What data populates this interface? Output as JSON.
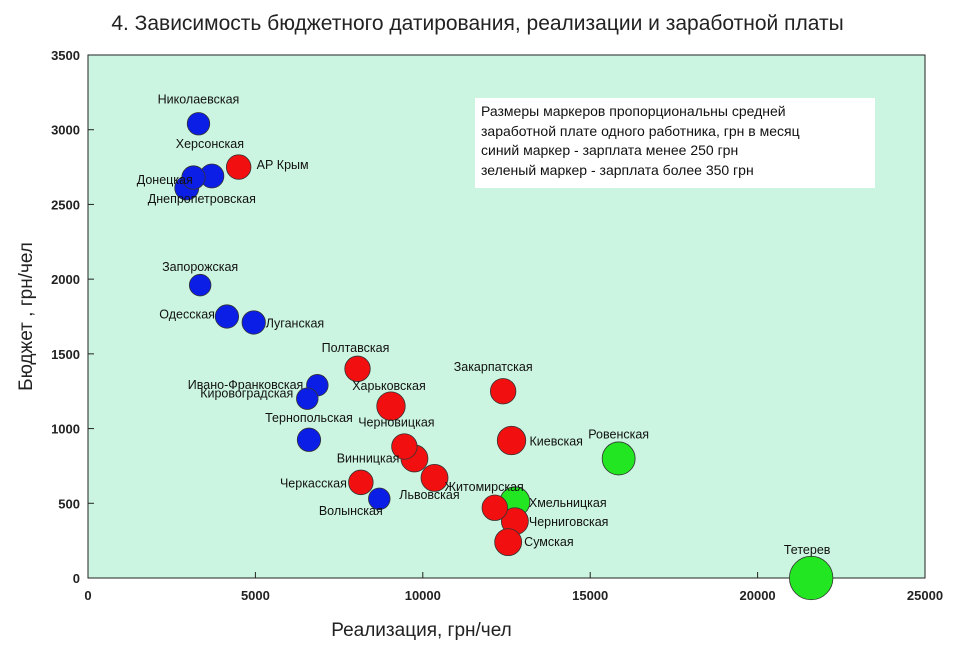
{
  "chart_data": {
    "type": "scatter",
    "title": "4. Зависимость бюджетного датирования, реализации и заработной платы",
    "xlabel": "Реализация, грн/чел",
    "ylabel": "Бюджет , грн/чел",
    "xlim": [
      0,
      25000
    ],
    "ylim": [
      0,
      3500
    ],
    "xticks": [
      "0",
      "5000",
      "10000",
      "15000",
      "20000",
      "25000"
    ],
    "yticks": [
      "0",
      "500",
      "1000",
      "1500",
      "2000",
      "2500",
      "3000",
      "3500"
    ],
    "plot_background": "#ccf5e1",
    "colors": {
      "blue": "#0a1ee6",
      "red": "#f20f0f",
      "green": "#22e622"
    },
    "note": [
      "Размеры маркеров пропорциональны средней",
      "заработной плате одного работника, грн в месяц",
      "синий маркер - зарплата менее 250 грн",
      "зеленый маркер - зарплата более 350 грн"
    ],
    "points": [
      {
        "label": "Николаевская",
        "x": 3300,
        "y": 3040,
        "size": 0.75,
        "color": "blue"
      },
      {
        "label": "Херсонская",
        "x": 3700,
        "y": 2690,
        "size": 0.8,
        "color": "blue"
      },
      {
        "label": "",
        "x": 3150,
        "y": 2680,
        "size": 0.78,
        "color": "blue"
      },
      {
        "label": "Донецкая",
        "x": 2950,
        "y": 2610,
        "size": 0.8,
        "color": "blue"
      },
      {
        "label": "Днепропетровская",
        "x": 0,
        "y": 0,
        "size": 0,
        "color": "none"
      },
      {
        "label": "АР Крым",
        "x": 4500,
        "y": 2750,
        "size": 0.82,
        "color": "red"
      },
      {
        "label": "Запорожская",
        "x": 3350,
        "y": 1960,
        "size": 0.72,
        "color": "blue"
      },
      {
        "label": "Одесская",
        "x": 4150,
        "y": 1750,
        "size": 0.78,
        "color": "blue"
      },
      {
        "label": "Луганская",
        "x": 4950,
        "y": 1710,
        "size": 0.78,
        "color": "blue"
      },
      {
        "label": "Полтавская",
        "x": 8050,
        "y": 1400,
        "size": 0.85,
        "color": "red"
      },
      {
        "label": "Ивано-Франковская",
        "x": 6850,
        "y": 1290,
        "size": 0.72,
        "color": "blue"
      },
      {
        "label": "Кировоградская",
        "x": 6550,
        "y": 1200,
        "size": 0.72,
        "color": "blue"
      },
      {
        "label": "Харьковская",
        "x": 9050,
        "y": 1150,
        "size": 0.95,
        "color": "red"
      },
      {
        "label": "Тернопольская",
        "x": 6600,
        "y": 925,
        "size": 0.78,
        "color": "blue"
      },
      {
        "label": "Черновицкая",
        "x": 9450,
        "y": 880,
        "size": 0.85,
        "color": "red"
      },
      {
        "label": "Винницкая",
        "x": 9750,
        "y": 800,
        "size": 0.9,
        "color": "red"
      },
      {
        "label": "Житомирская",
        "x": 10350,
        "y": 670,
        "size": 0.9,
        "color": "red"
      },
      {
        "label": "Черкасская",
        "x": 8150,
        "y": 640,
        "size": 0.82,
        "color": "red"
      },
      {
        "label": "Львовская",
        "x": 8700,
        "y": 530,
        "size": 0.72,
        "color": "blue"
      },
      {
        "label": "Волынская",
        "x": 0,
        "y": 0,
        "size": 0,
        "color": "none"
      },
      {
        "label": "Закарпатская",
        "x": 12400,
        "y": 1250,
        "size": 0.85,
        "color": "red"
      },
      {
        "label": "Киевская",
        "x": 12650,
        "y": 920,
        "size": 0.95,
        "color": "red"
      },
      {
        "label": "Ровенская",
        "x": 15850,
        "y": 800,
        "size": 1.1,
        "color": "green"
      },
      {
        "label": "Хмельницкая",
        "x": 12750,
        "y": 510,
        "size": 1.0,
        "color": "green"
      },
      {
        "label": "",
        "x": 12150,
        "y": 470,
        "size": 0.85,
        "color": "red"
      },
      {
        "label": "Черниговская",
        "x": 12750,
        "y": 380,
        "size": 0.9,
        "color": "red"
      },
      {
        "label": "Сумская",
        "x": 12550,
        "y": 240,
        "size": 0.9,
        "color": "red"
      },
      {
        "label": "Тетерев",
        "x": 21600,
        "y": 0,
        "size": 1.45,
        "color": "green"
      }
    ]
  }
}
